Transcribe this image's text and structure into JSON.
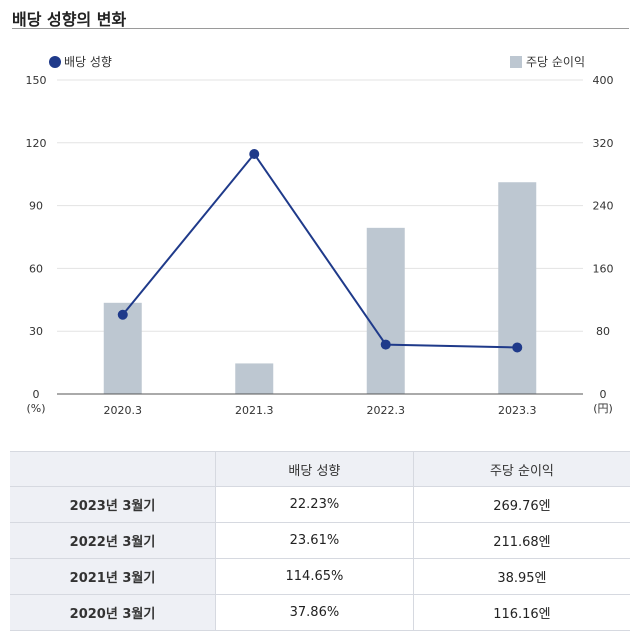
{
  "page": {
    "title": "배당 성향의 변화"
  },
  "chart_data": {
    "type": "bar+line",
    "categories": [
      "2020.3",
      "2021.3",
      "2022.3",
      "2023.3"
    ],
    "series": [
      {
        "name": "배당 성향",
        "kind": "line",
        "axis": "left",
        "color": "#1f3a8a",
        "values": [
          37.86,
          114.65,
          23.61,
          22.23
        ]
      },
      {
        "name": "주당 순이익",
        "kind": "bar",
        "axis": "right",
        "color": "#bdc7d1",
        "values": [
          116.16,
          38.95,
          211.68,
          269.76
        ]
      }
    ],
    "left_axis": {
      "ticks": [
        "0",
        "30",
        "60",
        "90",
        "120",
        "150"
      ],
      "ylim": [
        0,
        150
      ],
      "unit": "(%)"
    },
    "right_axis": {
      "ticks": [
        "0",
        "80",
        "160",
        "240",
        "320",
        "400"
      ],
      "ylim": [
        0,
        400
      ],
      "unit": "(円)"
    },
    "grid": true,
    "legend": {
      "left": "배당 성향",
      "right": "주당 순이익"
    }
  },
  "table": {
    "headers": [
      "",
      "배당 성향",
      "주당 순이익"
    ],
    "rows": [
      {
        "label": "2023년 3월기",
        "payout": "22.23%",
        "eps": "269.76엔"
      },
      {
        "label": "2022년 3월기",
        "payout": "23.61%",
        "eps": "211.68엔"
      },
      {
        "label": "2021년 3월기",
        "payout": "114.65%",
        "eps": "38.95엔"
      },
      {
        "label": "2020년 3월기",
        "payout": "37.86%",
        "eps": "116.16엔"
      }
    ]
  }
}
